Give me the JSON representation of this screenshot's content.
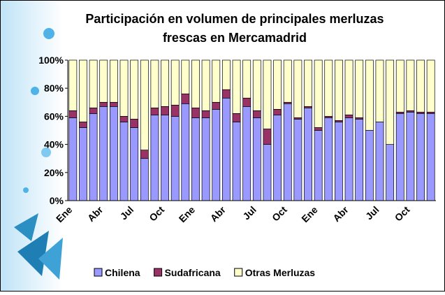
{
  "chart_data": {
    "type": "stacked-bar-100",
    "title": "Participación en volumen de principales merluzas frescas en Mercamadrid",
    "categories": [
      "Ene",
      null,
      null,
      "Abr",
      null,
      null,
      "Jul",
      null,
      null,
      "Oct",
      null,
      null,
      "Ene",
      null,
      null,
      "Abr",
      null,
      null,
      "Jul",
      null,
      null,
      "Oct",
      null,
      null,
      "Ene",
      null,
      null,
      "Abr",
      null,
      null,
      "Jul",
      null,
      null,
      "Oct",
      null,
      null
    ],
    "series": [
      {
        "name": "Chilena",
        "color": "#9999ff",
        "values": [
          59,
          52,
          62,
          67,
          67,
          56,
          52,
          30,
          61,
          61,
          60,
          69,
          59,
          59,
          65,
          73,
          56,
          67,
          59,
          40,
          61,
          69,
          58,
          66,
          50,
          59,
          56,
          59,
          58,
          50,
          56,
          40,
          62,
          63,
          62,
          62
        ]
      },
      {
        "name": "Sudafricana",
        "color": "#993366",
        "values": [
          5,
          4,
          4,
          3,
          3,
          4,
          6,
          6,
          5,
          6,
          8,
          7,
          7,
          5,
          5,
          6,
          6,
          6,
          5,
          11,
          4,
          1,
          1,
          1,
          2,
          1,
          1,
          2,
          1,
          0,
          0,
          0,
          1,
          1,
          1,
          1
        ]
      },
      {
        "name": "Otras Merluzas",
        "color": "#ffffcc",
        "values": [
          36,
          44,
          34,
          30,
          30,
          40,
          42,
          64,
          34,
          33,
          32,
          24,
          34,
          36,
          30,
          21,
          38,
          27,
          36,
          49,
          35,
          30,
          41,
          33,
          48,
          40,
          43,
          39,
          41,
          50,
          44,
          60,
          37,
          36,
          37,
          37
        ]
      }
    ],
    "ylim": [
      0,
      100
    ],
    "yticks": [
      {
        "value": 0,
        "label": "0%"
      },
      {
        "value": 20,
        "label": "20%"
      },
      {
        "value": 40,
        "label": "40%"
      },
      {
        "value": 60,
        "label": "60%"
      },
      {
        "value": 80,
        "label": "80%"
      },
      {
        "value": 100,
        "label": "100%"
      }
    ],
    "legend": "bottom"
  }
}
